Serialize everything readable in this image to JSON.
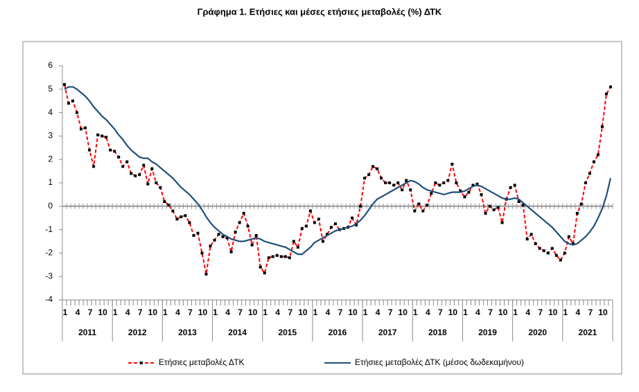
{
  "chart_data": {
    "type": "line",
    "title": "Γράφημα 1. Ετήσιες και μέσες ετήσιες μεταβολές (%) ΔΤΚ",
    "categories": [
      "1",
      null,
      null,
      "4",
      null,
      null,
      "7",
      null,
      null,
      "10",
      null,
      null,
      "1",
      null,
      null,
      "4",
      null,
      null,
      "7",
      null,
      null,
      "10",
      null,
      null,
      "1",
      null,
      null,
      "4",
      null,
      null,
      "7",
      null,
      null,
      "10",
      null,
      null,
      "1",
      null,
      null,
      "4",
      null,
      null,
      "7",
      null,
      null,
      "10",
      null,
      null,
      "1",
      null,
      null,
      "4",
      null,
      null,
      "7",
      null,
      null,
      "10",
      null,
      null,
      "1",
      null,
      null,
      "4",
      null,
      null,
      "7",
      null,
      null,
      "10",
      null,
      null,
      "1",
      null,
      null,
      "4",
      null,
      null,
      "7",
      null,
      null,
      "10",
      null,
      null,
      "1",
      null,
      null,
      "4",
      null,
      null,
      "7",
      null,
      null,
      "10",
      null,
      null,
      "1",
      null,
      null,
      "4",
      null,
      null,
      "7",
      null,
      null,
      "10",
      null,
      null,
      "1",
      null,
      null,
      "4",
      null,
      null,
      "7",
      null,
      null,
      "10",
      null,
      null,
      "1",
      null,
      null,
      "4",
      null,
      null,
      "7",
      null,
      null,
      "10",
      null,
      null
    ],
    "years": [
      "2011",
      "2012",
      "2013",
      "2014",
      "2015",
      "2016",
      "2017",
      "2018",
      "2019",
      "2020",
      "2021"
    ],
    "series": [
      {
        "name": "Ετήσιες μεταβολές ΔΤΚ",
        "color": "#ff0000",
        "marker_color": "#000000",
        "dashed": true,
        "values": [
          5.2,
          4.4,
          4.5,
          4.0,
          3.3,
          3.35,
          2.4,
          1.7,
          3.05,
          3.0,
          2.95,
          2.4,
          2.35,
          2.1,
          1.7,
          1.9,
          1.4,
          1.3,
          1.35,
          1.75,
          0.95,
          1.6,
          1.0,
          0.8,
          0.2,
          0.05,
          -0.2,
          -0.55,
          -0.45,
          -0.4,
          -0.7,
          -1.25,
          -1.15,
          -2.0,
          -2.9,
          -1.7,
          -1.45,
          -1.2,
          -1.3,
          -1.35,
          -1.95,
          -1.1,
          -0.7,
          -0.3,
          -0.85,
          -1.65,
          -1.25,
          -2.6,
          -2.85,
          -2.2,
          -2.15,
          -2.1,
          -2.15,
          -2.15,
          -2.2,
          -1.5,
          -1.75,
          -0.95,
          -0.85,
          -0.2,
          -0.7,
          -0.55,
          -1.5,
          -1.2,
          -0.9,
          -0.75,
          -1.0,
          -0.95,
          -0.9,
          -0.5,
          -0.8,
          0.0,
          1.2,
          1.35,
          1.7,
          1.6,
          1.2,
          1.0,
          1.0,
          0.9,
          1.0,
          0.7,
          1.1,
          0.7,
          -0.2,
          0.1,
          -0.2,
          0.05,
          0.55,
          1.0,
          0.9,
          1.0,
          1.1,
          1.8,
          1.0,
          0.65,
          0.4,
          0.6,
          0.9,
          0.95,
          0.5,
          -0.3,
          0.0,
          -0.15,
          -0.05,
          -0.7,
          0.3,
          0.8,
          0.9,
          0.2,
          0.05,
          -1.4,
          -1.2,
          -1.6,
          -1.8,
          -1.9,
          -2.0,
          -1.8,
          -2.1,
          -2.3,
          -2.0,
          -1.3,
          -1.6,
          -0.3,
          0.1,
          1.0,
          1.4,
          1.9,
          2.2,
          3.4,
          4.8,
          5.1
        ]
      },
      {
        "name": "Ετήσιες μεταβολές ΔΤΚ (μέσος δωδεκαμήνου)",
        "color": "#1f4e79",
        "dashed": false,
        "values": [
          5.0,
          5.1,
          5.1,
          5.0,
          4.85,
          4.7,
          4.5,
          4.25,
          4.05,
          3.85,
          3.7,
          3.5,
          3.3,
          3.05,
          2.85,
          2.6,
          2.4,
          2.25,
          2.1,
          2.05,
          2.05,
          1.9,
          1.8,
          1.65,
          1.5,
          1.35,
          1.2,
          1.0,
          0.8,
          0.65,
          0.5,
          0.3,
          0.1,
          -0.15,
          -0.45,
          -0.7,
          -0.9,
          -1.05,
          -1.2,
          -1.3,
          -1.4,
          -1.45,
          -1.5,
          -1.5,
          -1.45,
          -1.4,
          -1.35,
          -1.4,
          -1.5,
          -1.55,
          -1.6,
          -1.65,
          -1.7,
          -1.75,
          -1.85,
          -1.95,
          -2.05,
          -2.05,
          -1.9,
          -1.75,
          -1.55,
          -1.45,
          -1.35,
          -1.25,
          -1.15,
          -1.05,
          -1.0,
          -0.95,
          -0.9,
          -0.85,
          -0.75,
          -0.6,
          -0.4,
          -0.15,
          0.1,
          0.3,
          0.4,
          0.5,
          0.6,
          0.7,
          0.8,
          0.9,
          1.0,
          1.1,
          1.05,
          0.95,
          0.8,
          0.7,
          0.65,
          0.6,
          0.55,
          0.5,
          0.55,
          0.6,
          0.6,
          0.6,
          0.65,
          0.75,
          0.85,
          0.9,
          0.85,
          0.75,
          0.65,
          0.55,
          0.45,
          0.35,
          0.3,
          0.3,
          0.35,
          0.3,
          0.15,
          0.0,
          -0.15,
          -0.3,
          -0.45,
          -0.6,
          -0.75,
          -0.9,
          -1.1,
          -1.3,
          -1.5,
          -1.6,
          -1.65,
          -1.6,
          -1.45,
          -1.3,
          -1.1,
          -0.85,
          -0.5,
          -0.1,
          0.45,
          1.2
        ]
      }
    ],
    "ylim": [
      -4,
      6
    ],
    "yticks": [
      -4,
      -3,
      -2,
      -1,
      0,
      1,
      2,
      3,
      4,
      5,
      6
    ],
    "grid": false,
    "legend": "bottom"
  }
}
